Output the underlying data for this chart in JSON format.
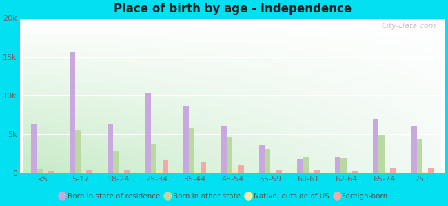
{
  "title": "Place of birth by age - Independence",
  "background_outer": "#00e0f0",
  "categories": [
    "<5",
    "5-17",
    "18-24",
    "25-34",
    "35-44",
    "45-54",
    "55-59",
    "60-61",
    "62-64",
    "65-74",
    "75+"
  ],
  "series": {
    "Born in state of residence": {
      "color": "#c9a8e0",
      "values": [
        6300,
        15600,
        6400,
        10400,
        8600,
        6000,
        3600,
        1800,
        2100,
        7000,
        6100
      ]
    },
    "Born in other state": {
      "color": "#b8d9a0",
      "values": [
        500,
        5600,
        2800,
        3700,
        5800,
        4600,
        3100,
        2000,
        1900,
        4900,
        4400
      ]
    },
    "Native, outside of US": {
      "color": "#f0f0a0",
      "values": [
        100,
        100,
        100,
        300,
        200,
        400,
        100,
        100,
        100,
        100,
        100
      ]
    },
    "Foreign-born": {
      "color": "#f4a8a8",
      "values": [
        200,
        400,
        300,
        1700,
        1400,
        1000,
        400,
        400,
        200,
        600,
        700
      ]
    }
  },
  "ylim": [
    0,
    20000
  ],
  "yticks": [
    0,
    5000,
    10000,
    15000,
    20000
  ],
  "ytick_labels": [
    "0",
    "5k",
    "10k",
    "15k",
    "20k"
  ],
  "legend_labels": [
    "Born in state of residence",
    "Born in other state",
    "Native, outside of US",
    "Foreign-born"
  ],
  "watermark": "City-Data.com"
}
